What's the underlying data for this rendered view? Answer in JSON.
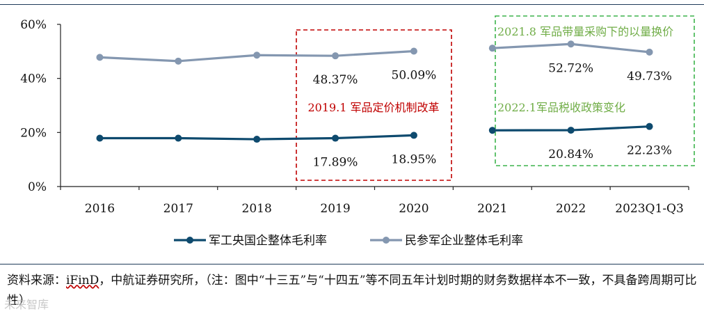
{
  "chart_data": {
    "type": "line",
    "categories": [
      "2016",
      "2017",
      "2018",
      "2019",
      "2020",
      "2021",
      "2022",
      "2023Q1-Q3"
    ],
    "ylim": [
      0,
      60
    ],
    "yticks": [
      "0%",
      "20%",
      "40%",
      "60%"
    ],
    "series": [
      {
        "name": "军工央国企整体毛利率",
        "color": "#0e4a6e",
        "values": [
          17.9,
          17.9,
          17.5,
          17.89,
          18.95,
          20.8,
          20.84,
          22.23
        ],
        "labels": [
          "",
          "",
          "",
          "17.89%",
          "18.95%",
          "",
          "20.84%",
          "22.23%"
        ]
      },
      {
        "name": "民参军企业整体毛利率",
        "color": "#8497b0",
        "values": [
          47.8,
          46.4,
          48.6,
          48.37,
          50.09,
          51.2,
          52.72,
          49.73
        ],
        "labels": [
          "",
          "",
          "",
          "48.37%",
          "50.09%",
          "",
          "52.72%",
          "49.73%"
        ]
      }
    ],
    "annotations": [
      {
        "text": "2019.1 军品定价机制改革",
        "color": "#c00000"
      },
      {
        "text": "2021.8 军品带量采购下的以量换价",
        "color": "#70ad47"
      },
      {
        "text": "2022.1军品税收政策变化",
        "color": "#70ad47"
      }
    ]
  },
  "source": {
    "prefix": "资料来源：",
    "ifind": "iFinD",
    "rest": "，中航证券研究所，（注：图中“十三五”与“十四五”等不同五年计划时期的财务数据样本不一致，不具备跨周期可比性）"
  },
  "watermark": "未来智库"
}
